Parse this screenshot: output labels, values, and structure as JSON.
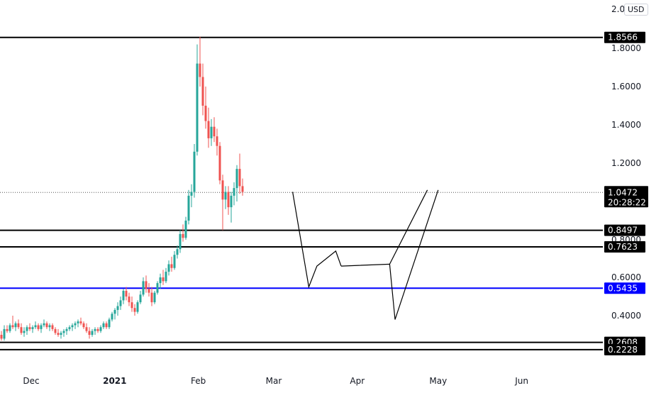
{
  "header": {
    "currency_label": "USD",
    "scale_top_label": "2.0"
  },
  "chart_data": {
    "type": "candlestick",
    "x_axis": {
      "tick_labels": [
        "Dec",
        "2021",
        "Feb",
        "Mar",
        "Apr",
        "May",
        "Jun"
      ],
      "range": [
        "2020-11-21",
        "2021-06-11"
      ]
    },
    "y_axis": {
      "tick_labels": [
        "1.8000",
        "1.6000",
        "1.4000",
        "1.2000",
        "0.8000",
        "0.6000",
        "0.4000"
      ],
      "range": [
        0.15,
        2.02
      ]
    },
    "last_price": {
      "value": "1.0472",
      "countdown": "20:28:22",
      "color": "#000000"
    },
    "horizontal_levels": [
      {
        "value": 1.8566,
        "label": "1.8566",
        "color": "#000000"
      },
      {
        "value": 0.8497,
        "label": "0.8497",
        "color": "#000000"
      },
      {
        "value": 0.7623,
        "label": "0.7623",
        "color": "#000000"
      },
      {
        "value": 0.5435,
        "label": "0.5435",
        "color": "#0000ff"
      },
      {
        "value": 0.2608,
        "label": "0.2608",
        "color": "#000000"
      },
      {
        "value": 0.2228,
        "label": "0.2228",
        "color": "#000000"
      }
    ],
    "projection_path": [
      {
        "date": "2021-03-08",
        "price": 1.05
      },
      {
        "date": "2021-03-14",
        "price": 0.55
      },
      {
        "date": "2021-03-17",
        "price": 0.66
      },
      {
        "date": "2021-03-24",
        "price": 0.74
      },
      {
        "date": "2021-03-26",
        "price": 0.66
      }
    ],
    "projection_path_2": [
      {
        "date": "2021-03-26",
        "price": 0.66
      },
      {
        "date": "2021-04-13",
        "price": 0.67
      },
      {
        "date": "2021-04-15",
        "price": 0.38
      },
      {
        "date": "2021-05-01",
        "price": 1.06
      }
    ],
    "projection_path_3": [
      {
        "date": "2021-04-13",
        "price": 0.67
      },
      {
        "date": "2021-04-27",
        "price": 1.06
      }
    ],
    "candles": [
      {
        "o": 0.3,
        "h": 0.32,
        "l": 0.27,
        "c": 0.28
      },
      {
        "o": 0.28,
        "h": 0.35,
        "l": 0.27,
        "c": 0.33
      },
      {
        "o": 0.33,
        "h": 0.35,
        "l": 0.31,
        "c": 0.32
      },
      {
        "o": 0.32,
        "h": 0.36,
        "l": 0.31,
        "c": 0.35
      },
      {
        "o": 0.35,
        "h": 0.4,
        "l": 0.33,
        "c": 0.34
      },
      {
        "o": 0.34,
        "h": 0.37,
        "l": 0.32,
        "c": 0.36
      },
      {
        "o": 0.36,
        "h": 0.38,
        "l": 0.33,
        "c": 0.34
      },
      {
        "o": 0.34,
        "h": 0.36,
        "l": 0.3,
        "c": 0.31
      },
      {
        "o": 0.31,
        "h": 0.34,
        "l": 0.29,
        "c": 0.32
      },
      {
        "o": 0.32,
        "h": 0.35,
        "l": 0.3,
        "c": 0.34
      },
      {
        "o": 0.34,
        "h": 0.36,
        "l": 0.32,
        "c": 0.33
      },
      {
        "o": 0.33,
        "h": 0.35,
        "l": 0.31,
        "c": 0.34
      },
      {
        "o": 0.34,
        "h": 0.37,
        "l": 0.33,
        "c": 0.35
      },
      {
        "o": 0.35,
        "h": 0.36,
        "l": 0.32,
        "c": 0.33
      },
      {
        "o": 0.33,
        "h": 0.36,
        "l": 0.31,
        "c": 0.35
      },
      {
        "o": 0.35,
        "h": 0.38,
        "l": 0.34,
        "c": 0.36
      },
      {
        "o": 0.36,
        "h": 0.37,
        "l": 0.33,
        "c": 0.34
      },
      {
        "o": 0.34,
        "h": 0.36,
        "l": 0.32,
        "c": 0.35
      },
      {
        "o": 0.35,
        "h": 0.36,
        "l": 0.32,
        "c": 0.33
      },
      {
        "o": 0.33,
        "h": 0.34,
        "l": 0.3,
        "c": 0.31
      },
      {
        "o": 0.31,
        "h": 0.33,
        "l": 0.29,
        "c": 0.3
      },
      {
        "o": 0.3,
        "h": 0.32,
        "l": 0.28,
        "c": 0.31
      },
      {
        "o": 0.31,
        "h": 0.33,
        "l": 0.29,
        "c": 0.32
      },
      {
        "o": 0.32,
        "h": 0.34,
        "l": 0.3,
        "c": 0.33
      },
      {
        "o": 0.33,
        "h": 0.35,
        "l": 0.32,
        "c": 0.34
      },
      {
        "o": 0.34,
        "h": 0.36,
        "l": 0.32,
        "c": 0.35
      },
      {
        "o": 0.35,
        "h": 0.37,
        "l": 0.33,
        "c": 0.36
      },
      {
        "o": 0.36,
        "h": 0.38,
        "l": 0.34,
        "c": 0.37
      },
      {
        "o": 0.37,
        "h": 0.39,
        "l": 0.35,
        "c": 0.36
      },
      {
        "o": 0.36,
        "h": 0.37,
        "l": 0.33,
        "c": 0.34
      },
      {
        "o": 0.34,
        "h": 0.36,
        "l": 0.31,
        "c": 0.32
      },
      {
        "o": 0.32,
        "h": 0.34,
        "l": 0.28,
        "c": 0.3
      },
      {
        "o": 0.3,
        "h": 0.33,
        "l": 0.29,
        "c": 0.32
      },
      {
        "o": 0.32,
        "h": 0.34,
        "l": 0.3,
        "c": 0.33
      },
      {
        "o": 0.33,
        "h": 0.34,
        "l": 0.31,
        "c": 0.32
      },
      {
        "o": 0.32,
        "h": 0.35,
        "l": 0.31,
        "c": 0.34
      },
      {
        "o": 0.34,
        "h": 0.37,
        "l": 0.33,
        "c": 0.36
      },
      {
        "o": 0.36,
        "h": 0.37,
        "l": 0.33,
        "c": 0.34
      },
      {
        "o": 0.34,
        "h": 0.39,
        "l": 0.33,
        "c": 0.38
      },
      {
        "o": 0.38,
        "h": 0.42,
        "l": 0.37,
        "c": 0.41
      },
      {
        "o": 0.41,
        "h": 0.44,
        "l": 0.38,
        "c": 0.43
      },
      {
        "o": 0.43,
        "h": 0.47,
        "l": 0.4,
        "c": 0.45
      },
      {
        "o": 0.45,
        "h": 0.5,
        "l": 0.43,
        "c": 0.48
      },
      {
        "o": 0.48,
        "h": 0.54,
        "l": 0.46,
        "c": 0.53
      },
      {
        "o": 0.53,
        "h": 0.55,
        "l": 0.48,
        "c": 0.5
      },
      {
        "o": 0.5,
        "h": 0.52,
        "l": 0.45,
        "c": 0.47
      },
      {
        "o": 0.47,
        "h": 0.5,
        "l": 0.42,
        "c": 0.44
      },
      {
        "o": 0.44,
        "h": 0.46,
        "l": 0.4,
        "c": 0.42
      },
      {
        "o": 0.42,
        "h": 0.48,
        "l": 0.41,
        "c": 0.47
      },
      {
        "o": 0.47,
        "h": 0.53,
        "l": 0.46,
        "c": 0.51
      },
      {
        "o": 0.51,
        "h": 0.6,
        "l": 0.5,
        "c": 0.58
      },
      {
        "o": 0.58,
        "h": 0.61,
        "l": 0.52,
        "c": 0.54
      },
      {
        "o": 0.54,
        "h": 0.57,
        "l": 0.5,
        "c": 0.52
      },
      {
        "o": 0.52,
        "h": 0.55,
        "l": 0.45,
        "c": 0.47
      },
      {
        "o": 0.47,
        "h": 0.53,
        "l": 0.46,
        "c": 0.52
      },
      {
        "o": 0.52,
        "h": 0.58,
        "l": 0.51,
        "c": 0.57
      },
      {
        "o": 0.57,
        "h": 0.62,
        "l": 0.54,
        "c": 0.6
      },
      {
        "o": 0.6,
        "h": 0.64,
        "l": 0.56,
        "c": 0.58
      },
      {
        "o": 0.58,
        "h": 0.65,
        "l": 0.57,
        "c": 0.63
      },
      {
        "o": 0.63,
        "h": 0.69,
        "l": 0.61,
        "c": 0.67
      },
      {
        "o": 0.67,
        "h": 0.71,
        "l": 0.63,
        "c": 0.65
      },
      {
        "o": 0.65,
        "h": 0.74,
        "l": 0.64,
        "c": 0.72
      },
      {
        "o": 0.72,
        "h": 0.77,
        "l": 0.7,
        "c": 0.75
      },
      {
        "o": 0.75,
        "h": 0.85,
        "l": 0.73,
        "c": 0.83
      },
      {
        "o": 0.83,
        "h": 0.88,
        "l": 0.79,
        "c": 0.81
      },
      {
        "o": 0.81,
        "h": 0.92,
        "l": 0.8,
        "c": 0.9
      },
      {
        "o": 0.9,
        "h": 1.06,
        "l": 0.88,
        "c": 1.03
      },
      {
        "o": 1.03,
        "h": 1.09,
        "l": 0.97,
        "c": 1.05
      },
      {
        "o": 1.05,
        "h": 1.3,
        "l": 1.02,
        "c": 1.26
      },
      {
        "o": 1.26,
        "h": 1.82,
        "l": 1.24,
        "c": 1.72
      },
      {
        "o": 1.72,
        "h": 1.86,
        "l": 1.6,
        "c": 1.65
      },
      {
        "o": 1.65,
        "h": 1.72,
        "l": 1.45,
        "c": 1.5
      },
      {
        "o": 1.5,
        "h": 1.6,
        "l": 1.38,
        "c": 1.42
      },
      {
        "o": 1.42,
        "h": 1.49,
        "l": 1.28,
        "c": 1.33
      },
      {
        "o": 1.33,
        "h": 1.43,
        "l": 1.29,
        "c": 1.39
      },
      {
        "o": 1.39,
        "h": 1.44,
        "l": 1.31,
        "c": 1.34
      },
      {
        "o": 1.34,
        "h": 1.38,
        "l": 1.24,
        "c": 1.29
      },
      {
        "o": 1.29,
        "h": 1.31,
        "l": 1.09,
        "c": 1.11
      },
      {
        "o": 1.11,
        "h": 1.14,
        "l": 0.85,
        "c": 1.01
      },
      {
        "o": 1.01,
        "h": 1.08,
        "l": 0.96,
        "c": 1.05
      },
      {
        "o": 1.05,
        "h": 1.08,
        "l": 0.93,
        "c": 0.97
      },
      {
        "o": 0.97,
        "h": 1.05,
        "l": 0.89,
        "c": 1.03
      },
      {
        "o": 1.03,
        "h": 1.1,
        "l": 0.98,
        "c": 1.07
      },
      {
        "o": 1.07,
        "h": 1.19,
        "l": 1.0,
        "c": 1.17
      },
      {
        "o": 1.17,
        "h": 1.25,
        "l": 1.04,
        "c": 1.08
      },
      {
        "o": 1.08,
        "h": 1.12,
        "l": 1.03,
        "c": 1.05
      }
    ]
  }
}
